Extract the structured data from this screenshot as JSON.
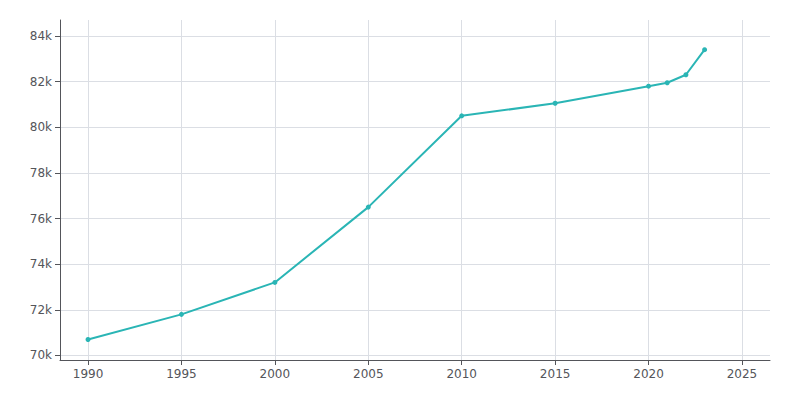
{
  "chart_data": {
    "type": "line",
    "x": [
      1990,
      1995,
      2000,
      2005,
      2010,
      2015,
      2020,
      2021,
      2022,
      2023
    ],
    "values": [
      70700,
      71800,
      73200,
      76500,
      80500,
      81050,
      81800,
      81950,
      82300,
      83400
    ],
    "color": "#2ab5b5",
    "marker": "circle",
    "xlim": [
      1988.5,
      2026.5
    ],
    "xticks": [
      1990,
      1995,
      2000,
      2005,
      2010,
      2015,
      2020,
      2025
    ],
    "ylim": [
      69800,
      84700
    ],
    "yticks": [
      {
        "value": 70000,
        "label": "70k"
      },
      {
        "value": 72000,
        "label": "72k"
      },
      {
        "value": 74000,
        "label": "74k"
      },
      {
        "value": 76000,
        "label": "76k"
      },
      {
        "value": 78000,
        "label": "78k"
      },
      {
        "value": 80000,
        "label": "80k"
      },
      {
        "value": 82000,
        "label": "82k"
      },
      {
        "value": 84000,
        "label": "84k"
      }
    ],
    "grid": true
  }
}
